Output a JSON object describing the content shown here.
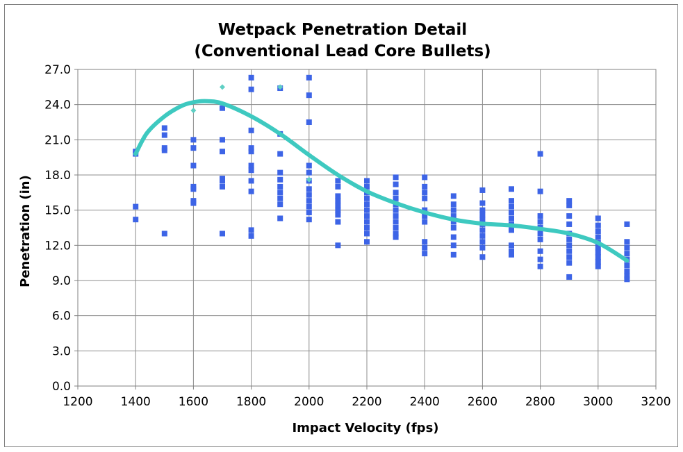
{
  "chart_data": {
    "type": "scatter",
    "title": "Wetpack Penetration Detail",
    "subtitle": "(Conventional Lead Core Bullets)",
    "xlabel": "Impact Velocity (fps)",
    "ylabel": "Penetration (in)",
    "xlim": [
      1200,
      3200
    ],
    "ylim": [
      0,
      27
    ],
    "x_ticks": [
      1200,
      1400,
      1600,
      1800,
      2000,
      2200,
      2400,
      2600,
      2800,
      3000,
      3200
    ],
    "x_tick_labels": [
      "1200",
      "1400",
      "1600",
      "1800",
      "2000",
      "2200",
      "2400",
      "2600",
      "2800",
      "3000",
      "3200"
    ],
    "y_ticks": [
      0,
      3,
      6,
      9,
      12,
      15,
      18,
      21,
      24,
      27
    ],
    "y_tick_labels": [
      "0.0",
      "3.0",
      "6.0",
      "9.0",
      "12.0",
      "15.0",
      "18.0",
      "21.0",
      "24.0",
      "27.0"
    ],
    "grid": true,
    "colors": {
      "points": "#3d64e6",
      "secondary_points": "#5fcfc4",
      "trend": "#3ec9c0",
      "grid": "#8c8c8c"
    },
    "series": [
      {
        "marker": "square",
        "points": [
          [
            1400,
            20.0
          ],
          [
            1400,
            19.8
          ],
          [
            1400,
            15.3
          ],
          [
            1400,
            14.2
          ],
          [
            1500,
            22.0
          ],
          [
            1500,
            21.4
          ],
          [
            1500,
            20.3
          ],
          [
            1500,
            20.1
          ],
          [
            1500,
            13.0
          ],
          [
            1600,
            21.0
          ],
          [
            1600,
            20.3
          ],
          [
            1600,
            18.8
          ],
          [
            1600,
            17.0
          ],
          [
            1600,
            16.8
          ],
          [
            1600,
            15.8
          ],
          [
            1600,
            15.6
          ],
          [
            1700,
            23.7
          ],
          [
            1700,
            21.0
          ],
          [
            1700,
            20.0
          ],
          [
            1700,
            17.7
          ],
          [
            1700,
            17.5
          ],
          [
            1700,
            17.0
          ],
          [
            1700,
            13.0
          ],
          [
            1800,
            26.3
          ],
          [
            1800,
            25.3
          ],
          [
            1800,
            21.8
          ],
          [
            1800,
            20.3
          ],
          [
            1800,
            20.0
          ],
          [
            1800,
            18.8
          ],
          [
            1800,
            18.4
          ],
          [
            1800,
            17.5
          ],
          [
            1800,
            16.6
          ],
          [
            1800,
            13.3
          ],
          [
            1800,
            12.8
          ],
          [
            1900,
            25.4
          ],
          [
            1900,
            21.5
          ],
          [
            1900,
            19.8
          ],
          [
            1900,
            18.2
          ],
          [
            1900,
            17.6
          ],
          [
            1900,
            17.0
          ],
          [
            1900,
            16.5
          ],
          [
            1900,
            16.0
          ],
          [
            1900,
            15.5
          ],
          [
            1900,
            14.3
          ],
          [
            2000,
            26.3
          ],
          [
            2000,
            24.8
          ],
          [
            2000,
            22.5
          ],
          [
            2000,
            18.8
          ],
          [
            2000,
            18.2
          ],
          [
            2000,
            17.5
          ],
          [
            2000,
            16.8
          ],
          [
            2000,
            16.3
          ],
          [
            2000,
            15.8
          ],
          [
            2000,
            15.3
          ],
          [
            2000,
            14.8
          ],
          [
            2000,
            14.2
          ],
          [
            2100,
            17.5
          ],
          [
            2100,
            17.0
          ],
          [
            2100,
            16.2
          ],
          [
            2100,
            15.8
          ],
          [
            2100,
            15.4
          ],
          [
            2100,
            15.0
          ],
          [
            2100,
            14.6
          ],
          [
            2100,
            14.0
          ],
          [
            2100,
            12.0
          ],
          [
            2200,
            17.5
          ],
          [
            2200,
            17.0
          ],
          [
            2200,
            16.5
          ],
          [
            2200,
            16.0
          ],
          [
            2200,
            15.5
          ],
          [
            2200,
            15.0
          ],
          [
            2200,
            14.5
          ],
          [
            2200,
            14.0
          ],
          [
            2200,
            13.5
          ],
          [
            2200,
            13.0
          ],
          [
            2200,
            12.3
          ],
          [
            2300,
            17.8
          ],
          [
            2300,
            17.2
          ],
          [
            2300,
            16.5
          ],
          [
            2300,
            16.0
          ],
          [
            2300,
            15.5
          ],
          [
            2300,
            15.0
          ],
          [
            2300,
            14.5
          ],
          [
            2300,
            14.0
          ],
          [
            2300,
            13.5
          ],
          [
            2300,
            13.0
          ],
          [
            2300,
            12.7
          ],
          [
            2400,
            17.8
          ],
          [
            2400,
            17.0
          ],
          [
            2400,
            16.5
          ],
          [
            2400,
            16.0
          ],
          [
            2400,
            15.0
          ],
          [
            2400,
            14.5
          ],
          [
            2400,
            14.0
          ],
          [
            2400,
            12.3
          ],
          [
            2400,
            11.8
          ],
          [
            2400,
            11.3
          ],
          [
            2500,
            16.2
          ],
          [
            2500,
            15.5
          ],
          [
            2500,
            15.0
          ],
          [
            2500,
            14.5
          ],
          [
            2500,
            14.0
          ],
          [
            2500,
            13.5
          ],
          [
            2500,
            12.7
          ],
          [
            2500,
            12.0
          ],
          [
            2500,
            11.2
          ],
          [
            2600,
            16.7
          ],
          [
            2600,
            15.6
          ],
          [
            2600,
            15.0
          ],
          [
            2600,
            14.6
          ],
          [
            2600,
            14.2
          ],
          [
            2600,
            13.8
          ],
          [
            2600,
            13.3
          ],
          [
            2600,
            12.8
          ],
          [
            2600,
            12.3
          ],
          [
            2600,
            11.8
          ],
          [
            2600,
            11.0
          ],
          [
            2700,
            16.8
          ],
          [
            2700,
            15.8
          ],
          [
            2700,
            15.3
          ],
          [
            2700,
            14.8
          ],
          [
            2700,
            14.3
          ],
          [
            2700,
            13.8
          ],
          [
            2700,
            13.3
          ],
          [
            2700,
            12.0
          ],
          [
            2700,
            11.5
          ],
          [
            2700,
            11.2
          ],
          [
            2800,
            19.8
          ],
          [
            2800,
            16.6
          ],
          [
            2800,
            14.5
          ],
          [
            2800,
            14.0
          ],
          [
            2800,
            13.5
          ],
          [
            2800,
            13.0
          ],
          [
            2800,
            12.5
          ],
          [
            2800,
            11.5
          ],
          [
            2800,
            10.8
          ],
          [
            2800,
            10.2
          ],
          [
            2900,
            15.8
          ],
          [
            2900,
            15.4
          ],
          [
            2900,
            14.5
          ],
          [
            2900,
            13.8
          ],
          [
            2900,
            13.0
          ],
          [
            2900,
            12.5
          ],
          [
            2900,
            12.0
          ],
          [
            2900,
            11.5
          ],
          [
            2900,
            11.0
          ],
          [
            2900,
            10.5
          ],
          [
            2900,
            9.3
          ],
          [
            3000,
            14.3
          ],
          [
            3000,
            13.7
          ],
          [
            3000,
            13.2
          ],
          [
            3000,
            12.7
          ],
          [
            3000,
            12.2
          ],
          [
            3000,
            11.8
          ],
          [
            3000,
            11.4
          ],
          [
            3000,
            11.0
          ],
          [
            3000,
            10.6
          ],
          [
            3000,
            10.2
          ],
          [
            3100,
            13.8
          ],
          [
            3100,
            12.3
          ],
          [
            3100,
            11.8
          ],
          [
            3100,
            11.3
          ],
          [
            3100,
            10.8
          ],
          [
            3100,
            10.3
          ],
          [
            3100,
            9.8
          ],
          [
            3100,
            9.4
          ],
          [
            3100,
            9.1
          ]
        ]
      },
      {
        "marker": "diamond",
        "points": [
          [
            1400,
            19.8
          ],
          [
            1600,
            23.5
          ],
          [
            1700,
            25.5
          ],
          [
            1900,
            25.5
          ],
          [
            2000,
            17.6
          ]
        ]
      }
    ],
    "trendline": [
      [
        1400,
        19.8
      ],
      [
        1440,
        21.6
      ],
      [
        1500,
        23.0
      ],
      [
        1560,
        23.9
      ],
      [
        1600,
        24.2
      ],
      [
        1640,
        24.3
      ],
      [
        1700,
        24.1
      ],
      [
        1800,
        23.0
      ],
      [
        1900,
        21.5
      ],
      [
        2000,
        19.7
      ],
      [
        2100,
        18.0
      ],
      [
        2200,
        16.6
      ],
      [
        2300,
        15.6
      ],
      [
        2400,
        14.8
      ],
      [
        2500,
        14.2
      ],
      [
        2600,
        13.85
      ],
      [
        2700,
        13.7
      ],
      [
        2800,
        13.4
      ],
      [
        2900,
        13.0
      ],
      [
        3000,
        12.2
      ],
      [
        3100,
        10.7
      ]
    ]
  }
}
